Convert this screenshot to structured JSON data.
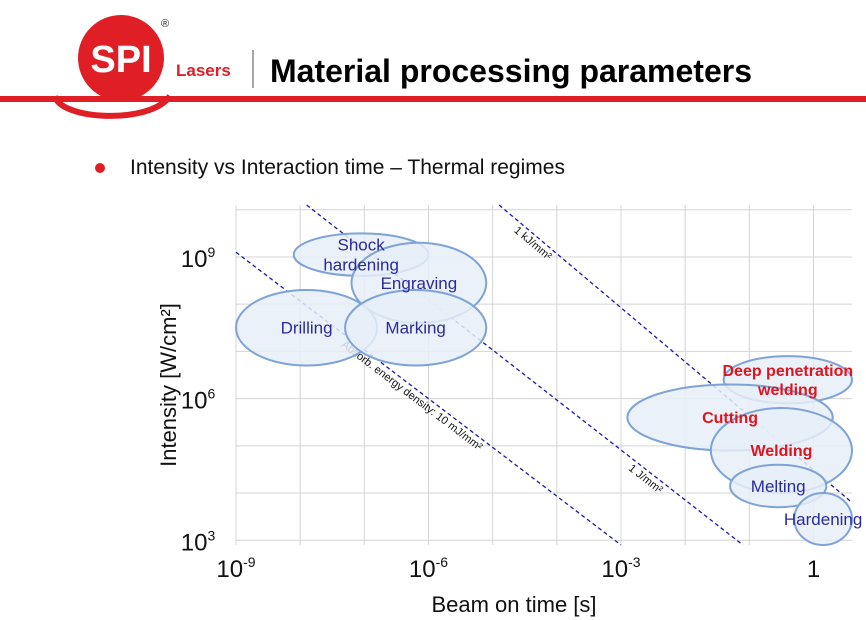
{
  "header": {
    "logo_text": "SPI",
    "registered_mark": "®",
    "brand_sub": "Lasers",
    "title": "Material processing parameters"
  },
  "bullet": {
    "text": "Intensity vs Interaction time – Thermal regimes"
  },
  "colors": {
    "brand_red": "#e01e25",
    "axis_blue": "#2a2a9a",
    "highlight_red": "#e0141e",
    "ellipse_fill": "#e6eef8",
    "ellipse_stroke": "#7fa3d6"
  },
  "chart_data": {
    "type": "scatter",
    "title": "Intensity vs Interaction time – Thermal regimes",
    "xlabel": "Beam on time [s]",
    "ylabel": "Intensity  [W/cm²]",
    "x_scale": "log10",
    "y_scale": "log10",
    "xlim_exp": [
      -9.0,
      0.6
    ],
    "ylim_exp": [
      2.9,
      10.1
    ],
    "x_ticks": [
      {
        "exp": -9,
        "base": "10",
        "sup": "-9"
      },
      {
        "exp": -6,
        "base": "10",
        "sup": "-6"
      },
      {
        "exp": -3,
        "base": "10",
        "sup": "-3"
      },
      {
        "exp": 0,
        "base": "1",
        "sup": ""
      }
    ],
    "y_ticks": [
      {
        "exp": 9,
        "base": "10",
        "sup": "9"
      },
      {
        "exp": 6,
        "base": "10",
        "sup": "6"
      },
      {
        "exp": 3,
        "base": "10",
        "sup": "3"
      }
    ],
    "grid": true,
    "regions": [
      {
        "name": "Shock hardening",
        "lines": [
          "Shock",
          "hardening"
        ],
        "color": "blue",
        "log_t": [
          -8.1,
          -6.0
        ],
        "log_i": [
          8.6,
          9.5
        ]
      },
      {
        "name": "Engraving",
        "lines": [
          "Engraving"
        ],
        "color": "blue",
        "log_t": [
          -7.2,
          -5.1
        ],
        "log_i": [
          7.6,
          9.3
        ]
      },
      {
        "name": "Drilling",
        "lines": [
          "Drilling"
        ],
        "color": "blue",
        "log_t": [
          -9.0,
          -6.8
        ],
        "log_i": [
          6.7,
          8.3
        ]
      },
      {
        "name": "Marking",
        "lines": [
          "Marking"
        ],
        "color": "blue",
        "log_t": [
          -7.3,
          -5.1
        ],
        "log_i": [
          6.7,
          8.3
        ]
      },
      {
        "name": "Deep penetration welding",
        "lines": [
          "Deep penetration",
          "welding"
        ],
        "color": "red",
        "log_t": [
          -1.4,
          0.6
        ],
        "log_i": [
          5.9,
          6.9
        ]
      },
      {
        "name": "Cutting",
        "lines": [
          "Cutting"
        ],
        "color": "red",
        "log_t": [
          -2.9,
          0.3
        ],
        "log_i": [
          4.9,
          6.3
        ]
      },
      {
        "name": "Welding",
        "lines": [
          "Welding"
        ],
        "color": "red",
        "log_t": [
          -1.6,
          0.6
        ],
        "log_i": [
          4.0,
          5.8
        ]
      },
      {
        "name": "Melting",
        "lines": [
          "Melting"
        ],
        "color": "blue",
        "log_t": [
          -1.3,
          0.2
        ],
        "log_i": [
          3.7,
          4.6
        ]
      },
      {
        "name": "Hardening",
        "lines": [
          "Hardening"
        ],
        "color": "blue",
        "log_t": [
          -0.3,
          0.6
        ],
        "log_i": [
          2.9,
          4.0
        ]
      }
    ],
    "energy_lines": [
      {
        "label": "1 kJ/mm²",
        "from": [
          -4.9,
          10.1
        ],
        "to": [
          0.6,
          3.8
        ]
      },
      {
        "label": "1 J/mm²",
        "from": [
          -7.9,
          10.1
        ],
        "to": [
          -1.1,
          2.9
        ]
      },
      {
        "label": "Absorb. energy density: 10 mJ/mm²",
        "from": [
          -9.0,
          9.1
        ],
        "to": [
          -3.0,
          2.9
        ]
      }
    ]
  }
}
